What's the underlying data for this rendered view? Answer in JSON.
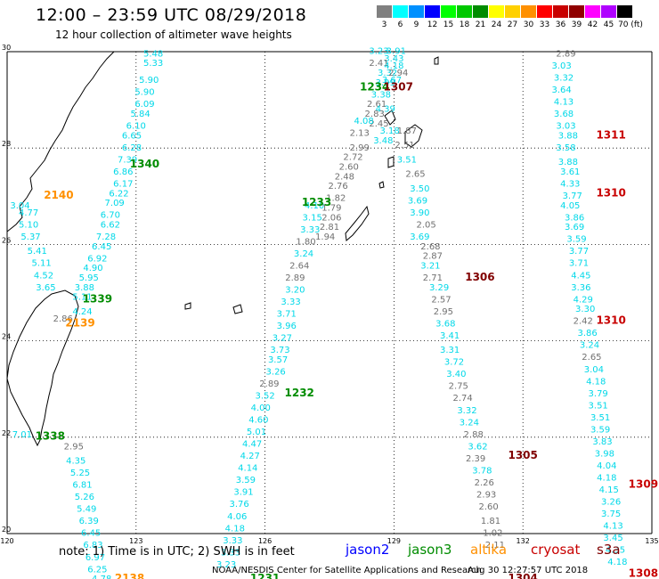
{
  "title": "12:00 – 23:59 UTC 08/29/2018",
  "subtitle": "12 hour collection of altimeter wave heights",
  "color_scale": [
    {
      "label": "3",
      "color": "#808080"
    },
    {
      "label": "6",
      "color": "#00ffff"
    },
    {
      "label": "9",
      "color": "#0090ff"
    },
    {
      "label": "12",
      "color": "#0000ff"
    },
    {
      "label": "15",
      "color": "#00ff00"
    },
    {
      "label": "18",
      "color": "#00c800"
    },
    {
      "label": "21",
      "color": "#008c00"
    },
    {
      "label": "24",
      "color": "#ffff00"
    },
    {
      "label": "27",
      "color": "#ffd000"
    },
    {
      "label": "30",
      "color": "#ff9000"
    },
    {
      "label": "33",
      "color": "#ff0000"
    },
    {
      "label": "36",
      "color": "#c80000"
    },
    {
      "label": "39",
      "color": "#900000"
    },
    {
      "label": "42",
      "color": "#ff00ff"
    },
    {
      "label": "45",
      "color": "#b000ff"
    },
    {
      "label": "70 (ft)",
      "color": "#000000"
    }
  ],
  "axes": {
    "lon_ticks": [
      "120",
      "123",
      "126",
      "129",
      "132",
      "135"
    ],
    "lat_ticks": [
      "30",
      "28",
      "26",
      "24",
      "22",
      "20"
    ]
  },
  "colors": {
    "swh": "#00d8e8",
    "swh_low": "#707070",
    "jason2": "#0000ff",
    "jason3": "#008c00",
    "altika": "#ff9000",
    "cryosat": "#c80000",
    "s3a": "#800000"
  },
  "tracks": [
    {
      "time": "1340",
      "mission": "jason3",
      "label_lon": 123.2,
      "label_lat": 27.6,
      "points": [
        [
          3.04,
          120.3,
          26.75
        ],
        [
          4.77,
          120.5,
          26.6
        ],
        [
          5.1,
          120.5,
          26.35
        ],
        [
          5.37,
          120.55,
          26.1
        ],
        [
          5.41,
          120.7,
          25.8
        ],
        [
          5.11,
          120.8,
          25.55
        ],
        [
          4.52,
          120.85,
          25.3
        ],
        [
          3.65,
          120.9,
          25.05
        ],
        [
          5.48,
          123.4,
          29.9
        ],
        [
          5.33,
          123.4,
          29.7
        ],
        [
          5.9,
          123.3,
          29.35
        ],
        [
          5.9,
          123.2,
          29.1
        ],
        [
          6.09,
          123.2,
          28.85
        ],
        [
          5.84,
          123.1,
          28.65
        ],
        [
          6.1,
          123.0,
          28.4
        ],
        [
          6.65,
          122.9,
          28.2
        ],
        [
          6.28,
          122.9,
          27.95
        ],
        [
          7.39,
          122.8,
          27.7
        ],
        [
          6.86,
          122.7,
          27.45
        ],
        [
          6.17,
          122.7,
          27.2
        ],
        [
          6.22,
          122.6,
          27.0
        ],
        [
          7.09,
          122.5,
          26.8
        ],
        [
          6.7,
          122.4,
          26.55
        ],
        [
          6.62,
          122.4,
          26.35
        ],
        [
          7.28,
          122.3,
          26.1
        ],
        [
          6.45,
          122.2,
          25.9
        ],
        [
          6.92,
          122.1,
          25.65
        ],
        [
          4.9,
          122.0,
          25.45
        ],
        [
          5.95,
          121.9,
          25.25
        ],
        [
          3.88,
          121.8,
          25.05
        ],
        [
          5.11,
          121.75,
          24.85
        ],
        [
          4.24,
          121.75,
          24.55
        ]
      ]
    },
    {
      "time": "2140",
      "mission": "altika",
      "label_lon": 121.2,
      "label_lat": 26.95,
      "points": []
    },
    {
      "time": "1339",
      "mission": "jason3",
      "label_lon": 122.1,
      "label_lat": 24.8,
      "points": []
    },
    {
      "time": "2139",
      "mission": "altika",
      "label_lon": 121.7,
      "label_lat": 24.3,
      "points": [
        [
          2.86,
          121.3,
          24.4
        ]
      ]
    },
    {
      "time": "1338",
      "mission": "jason3",
      "label_lon": 121.0,
      "label_lat": 21.95,
      "points": [
        [
          7.01,
          120.35,
          22.0
        ],
        [
          2.95,
          121.55,
          21.75
        ],
        [
          4.35,
          121.6,
          21.45
        ],
        [
          5.25,
          121.7,
          21.2
        ],
        [
          6.81,
          121.75,
          20.95
        ],
        [
          5.26,
          121.8,
          20.7
        ],
        [
          5.49,
          121.85,
          20.45
        ],
        [
          6.39,
          121.9,
          20.2
        ],
        [
          6.45,
          121.95,
          19.95
        ],
        [
          6.83,
          122.0,
          19.7
        ],
        [
          6.97,
          122.05,
          19.45
        ],
        [
          6.25,
          122.1,
          19.2
        ],
        [
          4.78,
          122.2,
          19.0
        ]
      ]
    },
    {
      "time": "2138",
      "mission": "altika",
      "label_lon": 122.85,
      "label_lat": 19.0,
      "points": []
    },
    {
      "time": "1233",
      "mission": "jason3",
      "label_lon": 127.2,
      "label_lat": 26.8,
      "points": [
        [
          4.1,
          127.15,
          26.75
        ],
        [
          3.15,
          127.1,
          26.5
        ],
        [
          3.33,
          127.05,
          26.25
        ],
        [
          1.8,
          126.95,
          26.0
        ],
        [
          3.24,
          126.9,
          25.75
        ],
        [
          2.64,
          126.8,
          25.5
        ],
        [
          2.89,
          126.7,
          25.25
        ],
        [
          3.2,
          126.7,
          25.0
        ],
        [
          3.33,
          126.6,
          24.75
        ],
        [
          3.71,
          126.5,
          24.5
        ],
        [
          3.96,
          126.5,
          24.25
        ],
        [
          3.27,
          126.4,
          24.0
        ],
        [
          3.73,
          126.35,
          23.75
        ],
        [
          3.57,
          126.3,
          23.55
        ],
        [
          3.26,
          126.25,
          23.3
        ],
        [
          2.89,
          126.1,
          23.05
        ],
        [
          3.52,
          126.0,
          22.8
        ]
      ]
    },
    {
      "time": "1232",
      "mission": "jason3",
      "label_lon": 126.8,
      "label_lat": 22.85,
      "points": [
        [
          4.0,
          125.9,
          22.55
        ],
        [
          4.6,
          125.85,
          22.3
        ],
        [
          5.01,
          125.8,
          22.05
        ],
        [
          4.47,
          125.7,
          21.8
        ],
        [
          4.27,
          125.65,
          21.55
        ],
        [
          4.14,
          125.6,
          21.3
        ],
        [
          3.59,
          125.55,
          21.05
        ],
        [
          3.91,
          125.5,
          20.8
        ],
        [
          3.76,
          125.4,
          20.55
        ],
        [
          4.06,
          125.35,
          20.3
        ],
        [
          4.18,
          125.3,
          20.05
        ],
        [
          3.33,
          125.25,
          19.8
        ],
        [
          3.33,
          125.2,
          19.55
        ],
        [
          3.23,
          125.1,
          19.3
        ]
      ]
    },
    {
      "time": "1231",
      "mission": "jason3",
      "label_lon": 126.0,
      "label_lat": 19.0,
      "points": []
    },
    {
      "time": "1234",
      "mission": "jason3",
      "label_lon": 128.55,
      "label_lat": 29.2,
      "points": [
        [
          3.23,
          128.65,
          29.95
        ],
        [
          3.91,
          129.05,
          29.95
        ],
        [
          3.43,
          129.0,
          29.8
        ],
        [
          2.41,
          128.65,
          29.7
        ],
        [
          4.18,
          129.0,
          29.65
        ],
        [
          3.32,
          128.85,
          29.5
        ],
        [
          2.94,
          129.1,
          29.5
        ],
        [
          3.99,
          128.8,
          29.3
        ],
        [
          3.67,
          128.95,
          29.35
        ],
        [
          3.38,
          128.7,
          29.05
        ],
        [
          2.61,
          128.6,
          28.85
        ],
        [
          4.39,
          128.8,
          28.75
        ],
        [
          2.83,
          128.55,
          28.65
        ],
        [
          2.45,
          128.65,
          28.45
        ],
        [
          4.08,
          128.3,
          28.5
        ],
        [
          2.13,
          128.2,
          28.25
        ],
        [
          3.18,
          128.9,
          28.3
        ],
        [
          3.48,
          128.75,
          28.1
        ],
        [
          2.99,
          128.2,
          27.95
        ],
        [
          2.72,
          128.05,
          27.75
        ],
        [
          2.6,
          127.95,
          27.55
        ],
        [
          2.48,
          127.85,
          27.35
        ],
        [
          2.76,
          127.7,
          27.15
        ],
        [
          1.82,
          127.65,
          26.9
        ],
        [
          1.79,
          127.55,
          26.7
        ],
        [
          2.06,
          127.55,
          26.5
        ],
        [
          2.81,
          127.5,
          26.3
        ],
        [
          1.94,
          127.4,
          26.1
        ]
      ]
    },
    {
      "time": "1307",
      "mission": "s3a",
      "label_lon": 129.1,
      "label_lat": 29.2,
      "points": [
        [
          1.87,
          129.3,
          28.3
        ],
        [
          2.51,
          129.25,
          28.0
        ],
        [
          3.51,
          129.3,
          27.7
        ],
        [
          2.65,
          129.5,
          27.4
        ],
        [
          3.5,
          129.6,
          27.1
        ],
        [
          3.69,
          129.55,
          26.85
        ],
        [
          3.9,
          129.6,
          26.6
        ],
        [
          2.05,
          129.75,
          26.35
        ],
        [
          3.69,
          129.6,
          26.1
        ],
        [
          2.68,
          129.85,
          25.9
        ],
        [
          2.87,
          129.9,
          25.7
        ],
        [
          3.21,
          129.85,
          25.5
        ],
        [
          2.71,
          129.9,
          25.25
        ],
        [
          3.29,
          130.05,
          25.05
        ],
        [
          2.57,
          130.1,
          24.8
        ],
        [
          2.95,
          130.15,
          24.55
        ],
        [
          3.68,
          130.2,
          24.3
        ],
        [
          3.41,
          130.3,
          24.05
        ],
        [
          3.31,
          130.3,
          23.75
        ],
        [
          3.72,
          130.4,
          23.5
        ],
        [
          3.4,
          130.45,
          23.25
        ],
        [
          2.75,
          130.5,
          23.0
        ],
        [
          2.74,
          130.6,
          22.75
        ],
        [
          3.32,
          130.7,
          22.5
        ],
        [
          3.24,
          130.75,
          22.25
        ],
        [
          2.88,
          130.85,
          22.0
        ],
        [
          3.62,
          130.95,
          21.75
        ],
        [
          2.39,
          130.9,
          21.5
        ],
        [
          3.78,
          131.05,
          21.25
        ],
        [
          2.26,
          131.1,
          21.0
        ],
        [
          2.93,
          131.15,
          20.75
        ],
        [
          2.6,
          131.2,
          20.5
        ],
        [
          1.81,
          131.25,
          20.2
        ],
        [
          1.02,
          131.3,
          19.95
        ],
        [
          2.11,
          131.35,
          19.7
        ]
      ]
    },
    {
      "time": "1306",
      "mission": "s3a",
      "label_lon": 131.0,
      "label_lat": 25.25,
      "points": []
    },
    {
      "time": "1305",
      "mission": "s3a",
      "label_lon": 132.0,
      "label_lat": 21.55,
      "points": []
    },
    {
      "time": "1304",
      "mission": "s3a",
      "label_lon": 132.0,
      "label_lat": 19.0,
      "points": []
    },
    {
      "time": "1311",
      "mission": "cryosat",
      "label_lon": 134.05,
      "label_lat": 28.2,
      "points": [
        [
          2.89,
          133.0,
          29.9
        ],
        [
          3.03,
          132.9,
          29.65
        ],
        [
          3.32,
          132.95,
          29.4
        ],
        [
          3.64,
          132.9,
          29.15
        ],
        [
          4.13,
          132.95,
          28.9
        ],
        [
          3.68,
          132.95,
          28.65
        ],
        [
          3.03,
          133.0,
          28.4
        ],
        [
          3.88,
          133.05,
          28.2
        ],
        [
          3.58,
          133.0,
          27.95
        ],
        [
          3.88,
          133.05,
          27.65
        ],
        [
          3.61,
          133.1,
          27.45
        ],
        [
          4.33,
          133.1,
          27.2
        ]
      ]
    },
    {
      "time": "1310",
      "mission": "cryosat",
      "label_lon": 134.05,
      "label_lat": 27.0,
      "points": [
        [
          3.77,
          133.15,
          26.95
        ],
        [
          4.05,
          133.1,
          26.75
        ],
        [
          3.86,
          133.2,
          26.5
        ],
        [
          3.69,
          133.2,
          26.3
        ],
        [
          3.59,
          133.25,
          26.05
        ],
        [
          3.77,
          133.3,
          25.8
        ],
        [
          3.71,
          133.3,
          25.55
        ],
        [
          4.45,
          133.35,
          25.3
        ],
        [
          3.36,
          133.35,
          25.05
        ],
        [
          4.29,
          133.4,
          24.8
        ],
        [
          3.3,
          133.45,
          24.6
        ],
        [
          2.42,
          133.4,
          24.35
        ],
        [
          3.86,
          133.5,
          24.1
        ]
      ]
    },
    {
      "time": "1310",
      "mission": "cryosat",
      "label_lon": 134.05,
      "label_lat": 24.35,
      "points": [
        [
          3.24,
          133.55,
          23.85
        ],
        [
          2.65,
          133.6,
          23.6
        ],
        [
          3.04,
          133.65,
          23.35
        ],
        [
          4.18,
          133.7,
          23.1
        ],
        [
          3.79,
          133.75,
          22.85
        ],
        [
          3.51,
          133.75,
          22.6
        ],
        [
          3.51,
          133.8,
          22.35
        ],
        [
          3.59,
          133.8,
          22.1
        ],
        [
          3.83,
          133.85,
          21.85
        ],
        [
          3.98,
          133.9,
          21.6
        ],
        [
          4.04,
          133.95,
          21.35
        ],
        [
          4.18,
          133.95,
          21.1
        ],
        [
          4.15,
          134.0,
          20.85
        ],
        [
          3.26,
          134.05,
          20.6
        ],
        [
          3.75,
          134.05,
          20.35
        ],
        [
          4.13,
          134.1,
          20.1
        ],
        [
          3.45,
          134.1,
          19.85
        ],
        [
          4.35,
          134.15,
          19.6
        ],
        [
          4.18,
          134.2,
          19.35
        ]
      ]
    },
    {
      "time": "1309",
      "mission": "cryosat",
      "label_lon": 134.8,
      "label_lat": 20.95,
      "points": []
    },
    {
      "time": "1308",
      "mission": "cryosat",
      "label_lon": 134.8,
      "label_lat": 19.1,
      "points": []
    }
  ],
  "note": "note:  1) Time is in UTC;  2) SWH is in feet",
  "legend": [
    {
      "label": "jason2",
      "mission": "jason2"
    },
    {
      "label": "jason3",
      "mission": "jason3"
    },
    {
      "label": "altika",
      "mission": "altika"
    },
    {
      "label": "cryosat",
      "mission": "cryosat"
    },
    {
      "label": "s3a",
      "mission": "s3a"
    }
  ],
  "credit": "NOAA/NESDIS Center for Satellite Applications and Research",
  "timestamp": "Aug 30 12:27:57 UTC 2018"
}
